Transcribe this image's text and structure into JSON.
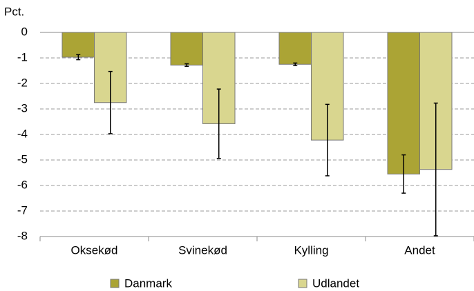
{
  "chart_data": {
    "type": "bar",
    "y_label": "Pct.",
    "categories": [
      "Oksekød",
      "Svinekød",
      "Kylling",
      "Andet"
    ],
    "series": [
      {
        "name": "Danmark",
        "color": "#aba435",
        "values": [
          -0.97,
          -1.28,
          -1.25,
          -5.55
        ],
        "errors": [
          0.1,
          0.05,
          0.05,
          0.75
        ]
      },
      {
        "name": "Udlandet",
        "color": "#d9d68f",
        "values": [
          -2.75,
          -3.58,
          -4.22,
          -5.37
        ],
        "errors": [
          1.22,
          1.36,
          1.4,
          2.6
        ]
      }
    ],
    "ylim": [
      -8,
      0
    ],
    "yticks": [
      0,
      -1,
      -2,
      -3,
      -4,
      -5,
      -6,
      -7,
      -8
    ],
    "grid": true,
    "legend": "bottom"
  }
}
